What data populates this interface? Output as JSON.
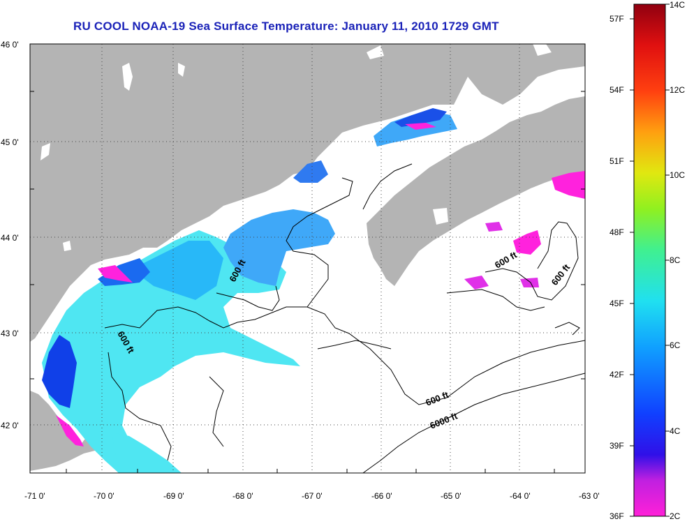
{
  "title": "RU COOL  NOAA-19  Sea Surface Temperature:  January 11, 2010 1729 GMT",
  "lat_labels": [
    "46 0'",
    "45 0'",
    "44 0'",
    "43 0'",
    "42 0'"
  ],
  "lon_labels": [
    "-71 0'",
    "-70 0'",
    "-69 0'",
    "-68 0'",
    "-67 0'",
    "-66 0'",
    "-65 0'",
    "-64 0'",
    "-63 0'"
  ],
  "contour_labels": [
    "600 ft",
    "600 ft",
    "600 ft",
    "600 ft",
    "600 ft",
    "6000 ft"
  ],
  "colorbar": {
    "fahrenheit_labels": [
      "57F",
      "54F",
      "51F",
      "48F",
      "45F",
      "42F",
      "39F",
      "36F"
    ],
    "celsius_labels": [
      "14C",
      "12C",
      "10C",
      "8C",
      "6C",
      "4C",
      "2C"
    ],
    "range_celsius": [
      2,
      14
    ]
  },
  "colors": {
    "land": "#b4b4b4",
    "title": "#1a22b8",
    "cold_magenta": "#ff22dd",
    "deep_blue": "#1030e0",
    "cyan": "#4fe6f2"
  }
}
